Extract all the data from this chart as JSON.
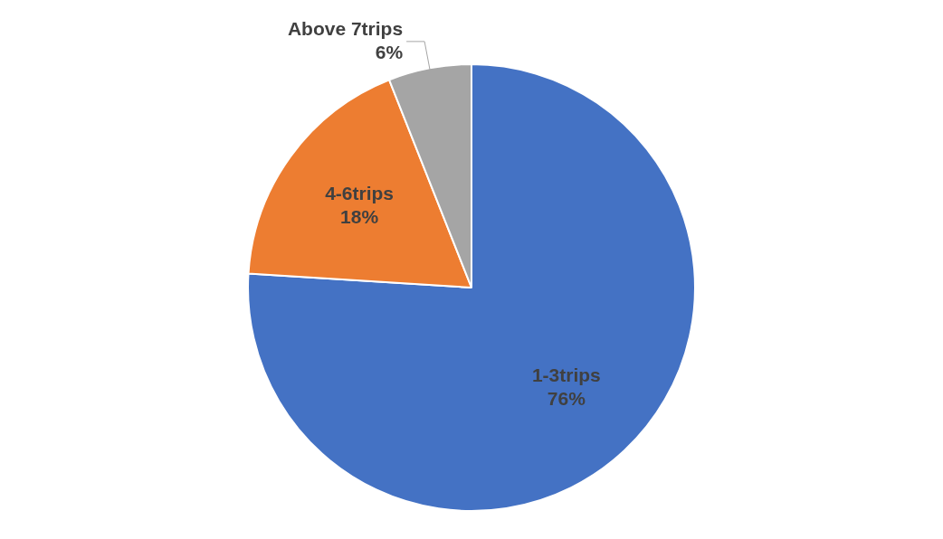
{
  "chart_data": {
    "type": "pie",
    "categories": [
      "1-3trips",
      "4-6trips",
      "Above 7trips"
    ],
    "values": [
      76,
      18,
      6
    ],
    "colors": [
      "#4472c4",
      "#ed7d31",
      "#a5a5a5"
    ],
    "value_labels": [
      "76%",
      "18%",
      "6%"
    ],
    "legend": false
  }
}
